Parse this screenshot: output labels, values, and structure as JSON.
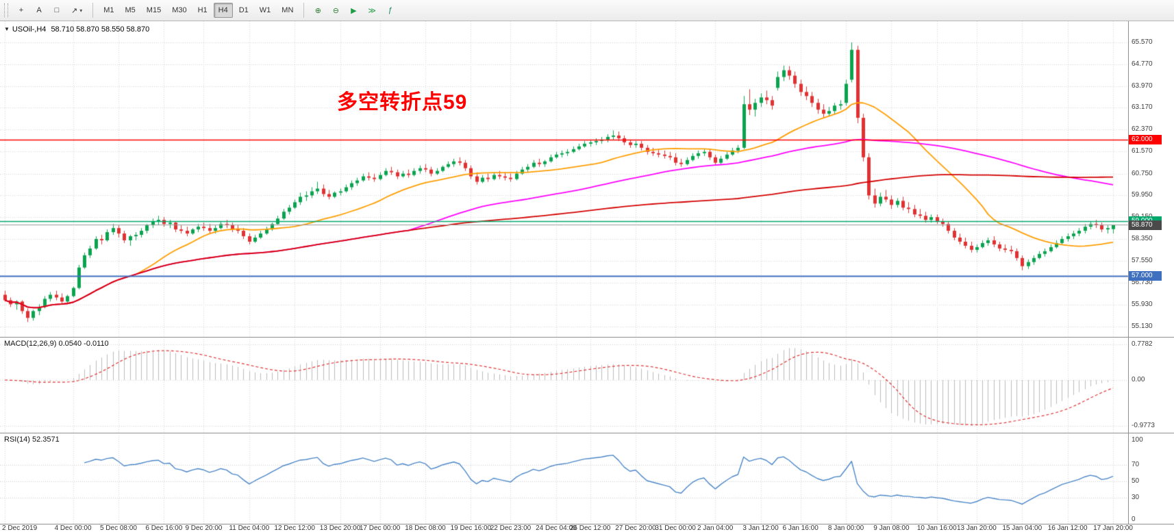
{
  "toolbar": {
    "left_tools": [
      {
        "name": "crosshair-tool",
        "glyph": "+"
      },
      {
        "name": "text-label-tool",
        "glyph": "A"
      },
      {
        "name": "rectangle-tool",
        "glyph": "□"
      },
      {
        "name": "shapes-arrows-tool",
        "glyph": "↗",
        "dropdown": "▾"
      }
    ],
    "timeframes": [
      "M1",
      "M5",
      "M15",
      "M30",
      "H1",
      "H4",
      "D1",
      "W1",
      "MN"
    ],
    "active_timeframe": "H4",
    "right_tools": [
      {
        "name": "zoom-in",
        "glyph": "⊕",
        "color": "#2e7d32"
      },
      {
        "name": "zoom-out",
        "glyph": "⊖",
        "color": "#2e7d32"
      },
      {
        "name": "auto-scroll",
        "glyph": "▶",
        "color": "#1f9d46"
      },
      {
        "name": "chart-shift",
        "glyph": "≫",
        "color": "#1f9d46"
      },
      {
        "name": "indicators",
        "glyph": "ƒ",
        "color": "#0b7f5a"
      }
    ]
  },
  "chart": {
    "symbol_title": "USOil-,H4",
    "ohlc": "58.710 58.870 58.550 58.870",
    "annotation": {
      "text": "多空转折点59",
      "color": "#ff0000"
    },
    "hlines": [
      {
        "value": 62.0,
        "label": "62.000",
        "color": "#ff0000",
        "width": 1.4
      },
      {
        "value": 59.0,
        "label": "59.000",
        "color": "#00a76d",
        "width": 1.6
      },
      {
        "value": 57.0,
        "label": "57.000",
        "color": "#3f6fbf",
        "width": 2.2
      }
    ],
    "current_price": {
      "value": 58.87,
      "label": "58.870",
      "bg": "#4a4a4a",
      "line_color": "#9a9a9a"
    }
  },
  "chart_data": {
    "type": "candlestick",
    "symbol": "USOil-",
    "timeframe": "H4",
    "title": "USOil-,H4",
    "ylim": [
      55.13,
      65.57
    ],
    "y_ticks": [
      65.57,
      64.77,
      63.97,
      63.17,
      62.37,
      61.57,
      60.75,
      59.95,
      59.15,
      58.35,
      57.55,
      56.73,
      55.93,
      55.13
    ],
    "x_ticks": [
      {
        "bar": 0,
        "label": "2 Dec 2019"
      },
      {
        "bar": 12,
        "label": "4 Dec 00:00"
      },
      {
        "bar": 20,
        "label": "5 Dec 08:00"
      },
      {
        "bar": 28,
        "label": "6 Dec 16:00"
      },
      {
        "bar": 35,
        "label": "9 Dec 20:00"
      },
      {
        "bar": 43,
        "label": "11 Dec 04:00"
      },
      {
        "bar": 51,
        "label": "12 Dec 12:00"
      },
      {
        "bar": 59,
        "label": "13 Dec 20:00"
      },
      {
        "bar": 66,
        "label": "17 Dec 00:00"
      },
      {
        "bar": 74,
        "label": "18 Dec 08:00"
      },
      {
        "bar": 82,
        "label": "19 Dec 16:00"
      },
      {
        "bar": 89,
        "label": "22 Dec 23:00"
      },
      {
        "bar": 97,
        "label": "24 Dec 04:00"
      },
      {
        "bar": 103,
        "label": "26 Dec 12:00"
      },
      {
        "bar": 111,
        "label": "27 Dec 20:00"
      },
      {
        "bar": 118,
        "label": "31 Dec 00:00"
      },
      {
        "bar": 125,
        "label": "2 Jan 04:00"
      },
      {
        "bar": 133,
        "label": "3 Jan 12:00"
      },
      {
        "bar": 140,
        "label": "6 Jan 16:00"
      },
      {
        "bar": 148,
        "label": "8 Jan 00:00"
      },
      {
        "bar": 156,
        "label": "9 Jan 08:00"
      },
      {
        "bar": 164,
        "label": "10 Jan 16:00"
      },
      {
        "bar": 171,
        "label": "13 Jan 20:00"
      },
      {
        "bar": 179,
        "label": "15 Jan 04:00"
      },
      {
        "bar": 187,
        "label": "16 Jan 12:00"
      },
      {
        "bar": 195,
        "label": "17 Jan 20:00"
      }
    ],
    "colors": {
      "up": "#0ca350",
      "down": "#e03232",
      "grid": "#d4d4d4",
      "background": "#ffffff",
      "axis_text": "#3c3c3c"
    },
    "moving_averages": [
      {
        "name": "fast-ma",
        "period": 24,
        "color": "#ff9d00"
      },
      {
        "name": "mid-ma",
        "period": 72,
        "color": "#ff00ff"
      },
      {
        "name": "slow-ma",
        "period": 150,
        "color": "#d40000"
      }
    ],
    "candles": [
      [
        56.3,
        56.45,
        56.05,
        56.1
      ],
      [
        56.1,
        56.2,
        55.85,
        55.95
      ],
      [
        55.95,
        56.1,
        55.75,
        56.05
      ],
      [
        56.05,
        56.1,
        55.6,
        55.7
      ],
      [
        55.7,
        55.8,
        55.3,
        55.45
      ],
      [
        55.45,
        55.75,
        55.35,
        55.7
      ],
      [
        55.7,
        55.95,
        55.55,
        55.85
      ],
      [
        55.85,
        56.25,
        55.8,
        56.15
      ],
      [
        56.15,
        56.4,
        56.05,
        56.3
      ],
      [
        56.3,
        56.45,
        56.1,
        56.2
      ],
      [
        56.2,
        56.35,
        55.95,
        56.05
      ],
      [
        56.05,
        56.3,
        55.95,
        56.25
      ],
      [
        56.25,
        56.6,
        56.2,
        56.55
      ],
      [
        56.55,
        57.4,
        56.5,
        57.3
      ],
      [
        57.3,
        57.85,
        57.25,
        57.75
      ],
      [
        57.75,
        58.1,
        57.65,
        58.0
      ],
      [
        58.0,
        58.45,
        57.95,
        58.35
      ],
      [
        58.35,
        58.5,
        58.15,
        58.3
      ],
      [
        58.3,
        58.7,
        58.25,
        58.6
      ],
      [
        58.6,
        58.9,
        58.5,
        58.75
      ],
      [
        58.75,
        58.85,
        58.4,
        58.55
      ],
      [
        58.55,
        58.65,
        58.2,
        58.3
      ],
      [
        58.3,
        58.5,
        58.1,
        58.45
      ],
      [
        58.45,
        58.6,
        58.3,
        58.5
      ],
      [
        58.5,
        58.75,
        58.4,
        58.65
      ],
      [
        58.65,
        58.9,
        58.55,
        58.85
      ],
      [
        58.85,
        59.1,
        58.75,
        59.0
      ],
      [
        59.0,
        59.2,
        58.85,
        59.05
      ],
      [
        59.05,
        59.15,
        58.8,
        58.9
      ],
      [
        58.9,
        59.05,
        58.75,
        58.95
      ],
      [
        58.95,
        59.0,
        58.6,
        58.7
      ],
      [
        58.7,
        58.85,
        58.55,
        58.65
      ],
      [
        58.65,
        58.8,
        58.45,
        58.55
      ],
      [
        58.55,
        58.75,
        58.5,
        58.7
      ],
      [
        58.7,
        58.9,
        58.6,
        58.8
      ],
      [
        58.8,
        58.95,
        58.65,
        58.75
      ],
      [
        58.75,
        58.9,
        58.55,
        58.65
      ],
      [
        58.65,
        58.85,
        58.55,
        58.75
      ],
      [
        58.75,
        59.0,
        58.7,
        58.9
      ],
      [
        58.9,
        59.05,
        58.75,
        58.85
      ],
      [
        58.85,
        58.95,
        58.6,
        58.7
      ],
      [
        58.7,
        58.85,
        58.55,
        58.65
      ],
      [
        58.65,
        58.75,
        58.35,
        58.45
      ],
      [
        58.45,
        58.55,
        58.15,
        58.25
      ],
      [
        58.25,
        58.5,
        58.2,
        58.4
      ],
      [
        58.4,
        58.65,
        58.35,
        58.55
      ],
      [
        58.55,
        58.8,
        58.5,
        58.7
      ],
      [
        58.7,
        58.95,
        58.65,
        58.9
      ],
      [
        58.9,
        59.2,
        58.85,
        59.1
      ],
      [
        59.1,
        59.45,
        59.05,
        59.35
      ],
      [
        59.35,
        59.6,
        59.25,
        59.5
      ],
      [
        59.5,
        59.8,
        59.45,
        59.7
      ],
      [
        59.7,
        60.05,
        59.6,
        59.9
      ],
      [
        59.9,
        60.1,
        59.75,
        59.95
      ],
      [
        59.95,
        60.25,
        59.85,
        60.1
      ],
      [
        60.1,
        60.45,
        60.0,
        60.2
      ],
      [
        60.2,
        60.35,
        59.9,
        60.0
      ],
      [
        60.0,
        60.15,
        59.8,
        59.9
      ],
      [
        59.9,
        60.1,
        59.85,
        60.05
      ],
      [
        60.05,
        60.2,
        59.95,
        60.1
      ],
      [
        60.1,
        60.35,
        60.05,
        60.25
      ],
      [
        60.25,
        60.5,
        60.15,
        60.4
      ],
      [
        60.4,
        60.6,
        60.3,
        60.5
      ],
      [
        60.5,
        60.75,
        60.45,
        60.65
      ],
      [
        60.65,
        60.8,
        60.5,
        60.6
      ],
      [
        60.6,
        60.75,
        60.45,
        60.55
      ],
      [
        60.55,
        60.8,
        60.5,
        60.7
      ],
      [
        60.7,
        60.95,
        60.65,
        60.85
      ],
      [
        60.85,
        61.0,
        60.7,
        60.8
      ],
      [
        60.8,
        60.9,
        60.55,
        60.65
      ],
      [
        60.65,
        60.85,
        60.6,
        60.75
      ],
      [
        60.75,
        60.9,
        60.6,
        60.7
      ],
      [
        60.7,
        60.95,
        60.65,
        60.85
      ],
      [
        60.85,
        61.05,
        60.75,
        60.95
      ],
      [
        60.95,
        61.1,
        60.8,
        60.9
      ],
      [
        60.9,
        61.0,
        60.65,
        60.75
      ],
      [
        60.75,
        60.95,
        60.7,
        60.85
      ],
      [
        60.85,
        61.05,
        60.8,
        61.0
      ],
      [
        61.0,
        61.2,
        60.95,
        61.1
      ],
      [
        61.1,
        61.3,
        61.0,
        61.2
      ],
      [
        61.2,
        61.35,
        61.05,
        61.15
      ],
      [
        61.15,
        61.25,
        60.85,
        60.95
      ],
      [
        60.95,
        61.05,
        60.55,
        60.65
      ],
      [
        60.65,
        60.8,
        60.35,
        60.45
      ],
      [
        60.45,
        60.7,
        60.4,
        60.6
      ],
      [
        60.6,
        60.75,
        60.45,
        60.55
      ],
      [
        60.55,
        60.8,
        60.5,
        60.7
      ],
      [
        60.7,
        60.85,
        60.55,
        60.65
      ],
      [
        60.65,
        60.8,
        60.5,
        60.6
      ],
      [
        60.6,
        60.75,
        60.45,
        60.55
      ],
      [
        60.55,
        60.85,
        60.5,
        60.75
      ],
      [
        60.75,
        61.0,
        60.7,
        60.9
      ],
      [
        60.9,
        61.1,
        60.8,
        61.0
      ],
      [
        61.0,
        61.25,
        60.95,
        61.15
      ],
      [
        61.15,
        61.3,
        61.0,
        61.1
      ],
      [
        61.1,
        61.25,
        61.0,
        61.2
      ],
      [
        61.2,
        61.45,
        61.15,
        61.35
      ],
      [
        61.35,
        61.55,
        61.3,
        61.45
      ],
      [
        61.45,
        61.6,
        61.35,
        61.5
      ],
      [
        61.5,
        61.65,
        61.4,
        61.55
      ],
      [
        61.55,
        61.75,
        61.5,
        61.65
      ],
      [
        61.65,
        61.85,
        61.6,
        61.75
      ],
      [
        61.75,
        61.95,
        61.7,
        61.85
      ],
      [
        61.85,
        62.0,
        61.75,
        61.9
      ],
      [
        61.9,
        62.05,
        61.8,
        61.95
      ],
      [
        61.95,
        62.1,
        61.85,
        62.0
      ],
      [
        62.0,
        62.2,
        61.9,
        62.1
      ],
      [
        62.1,
        62.34,
        62.0,
        62.15
      ],
      [
        62.15,
        62.3,
        61.95,
        62.05
      ],
      [
        62.05,
        62.15,
        61.8,
        61.9
      ],
      [
        61.9,
        62.0,
        61.7,
        61.8
      ],
      [
        61.8,
        61.95,
        61.7,
        61.85
      ],
      [
        61.85,
        61.95,
        61.6,
        61.7
      ],
      [
        61.7,
        61.8,
        61.45,
        61.55
      ],
      [
        61.55,
        61.7,
        61.4,
        61.5
      ],
      [
        61.5,
        61.65,
        61.35,
        61.45
      ],
      [
        61.45,
        61.6,
        61.3,
        61.4
      ],
      [
        61.4,
        61.55,
        61.25,
        61.35
      ],
      [
        61.35,
        61.5,
        61.05,
        61.15
      ],
      [
        61.15,
        61.3,
        61.0,
        61.1
      ],
      [
        61.1,
        61.35,
        61.05,
        61.25
      ],
      [
        61.25,
        61.5,
        61.2,
        61.4
      ],
      [
        61.4,
        61.6,
        61.3,
        61.5
      ],
      [
        61.5,
        61.65,
        61.4,
        61.55
      ],
      [
        61.55,
        61.65,
        61.25,
        61.35
      ],
      [
        61.35,
        61.45,
        61.05,
        61.15
      ],
      [
        61.15,
        61.4,
        61.1,
        61.3
      ],
      [
        61.3,
        61.55,
        61.25,
        61.45
      ],
      [
        61.45,
        61.7,
        61.4,
        61.6
      ],
      [
        61.6,
        61.8,
        61.5,
        61.7
      ],
      [
        61.7,
        63.6,
        61.65,
        63.3
      ],
      [
        63.3,
        63.85,
        62.9,
        63.1
      ],
      [
        63.1,
        63.5,
        62.85,
        63.35
      ],
      [
        63.35,
        63.7,
        63.2,
        63.55
      ],
      [
        63.55,
        63.8,
        63.3,
        63.45
      ],
      [
        63.45,
        63.6,
        63.1,
        63.25
      ],
      [
        63.9,
        64.5,
        63.8,
        64.3
      ],
      [
        64.3,
        64.72,
        64.15,
        64.55
      ],
      [
        64.55,
        64.7,
        64.2,
        64.35
      ],
      [
        64.35,
        64.5,
        63.9,
        64.05
      ],
      [
        64.05,
        64.2,
        63.6,
        63.75
      ],
      [
        63.75,
        63.95,
        63.45,
        63.6
      ],
      [
        63.6,
        63.75,
        63.2,
        63.35
      ],
      [
        63.35,
        63.5,
        62.95,
        63.1
      ],
      [
        63.1,
        63.3,
        62.8,
        62.95
      ],
      [
        62.95,
        63.2,
        62.85,
        63.05
      ],
      [
        63.05,
        63.35,
        62.95,
        63.25
      ],
      [
        63.25,
        63.45,
        63.1,
        63.3
      ],
      [
        63.35,
        64.2,
        63.25,
        64.05
      ],
      [
        64.2,
        65.57,
        64.1,
        65.3
      ],
      [
        65.3,
        65.45,
        62.6,
        62.8
      ],
      [
        62.8,
        62.95,
        61.2,
        61.35
      ],
      [
        61.35,
        61.5,
        59.8,
        59.95
      ],
      [
        59.95,
        60.2,
        59.5,
        59.65
      ],
      [
        59.65,
        60.05,
        59.55,
        59.9
      ],
      [
        59.9,
        60.15,
        59.7,
        59.8
      ],
      [
        59.8,
        59.95,
        59.45,
        59.6
      ],
      [
        59.6,
        59.85,
        59.5,
        59.75
      ],
      [
        59.75,
        59.9,
        59.4,
        59.5
      ],
      [
        59.5,
        59.7,
        59.3,
        59.45
      ],
      [
        59.45,
        59.6,
        59.15,
        59.25
      ],
      [
        59.25,
        59.45,
        59.1,
        59.2
      ],
      [
        59.2,
        59.35,
        58.95,
        59.05
      ],
      [
        59.05,
        59.25,
        58.95,
        59.15
      ],
      [
        59.15,
        59.25,
        58.9,
        59.0
      ],
      [
        59.0,
        59.1,
        58.8,
        58.9
      ],
      [
        58.9,
        59.0,
        58.55,
        58.65
      ],
      [
        58.65,
        58.75,
        58.3,
        58.4
      ],
      [
        58.4,
        58.55,
        58.15,
        58.25
      ],
      [
        58.25,
        58.4,
        58.0,
        58.1
      ],
      [
        58.1,
        58.25,
        57.85,
        57.95
      ],
      [
        57.95,
        58.15,
        57.85,
        58.05
      ],
      [
        58.05,
        58.3,
        58.0,
        58.2
      ],
      [
        58.2,
        58.4,
        58.1,
        58.3
      ],
      [
        58.3,
        58.45,
        58.05,
        58.15
      ],
      [
        58.15,
        58.25,
        57.9,
        58.0
      ],
      [
        58.0,
        58.15,
        57.85,
        57.95
      ],
      [
        57.95,
        58.1,
        57.8,
        57.9
      ],
      [
        57.9,
        58.0,
        57.55,
        57.65
      ],
      [
        57.65,
        57.75,
        57.2,
        57.35
      ],
      [
        57.35,
        57.6,
        57.25,
        57.5
      ],
      [
        57.5,
        57.75,
        57.4,
        57.65
      ],
      [
        57.65,
        57.9,
        57.6,
        57.8
      ],
      [
        57.8,
        58.0,
        57.7,
        57.9
      ],
      [
        57.9,
        58.15,
        57.85,
        58.05
      ],
      [
        58.05,
        58.3,
        58.0,
        58.2
      ],
      [
        58.2,
        58.45,
        58.15,
        58.35
      ],
      [
        58.35,
        58.55,
        58.25,
        58.45
      ],
      [
        58.45,
        58.65,
        58.35,
        58.55
      ],
      [
        58.55,
        58.75,
        58.45,
        58.65
      ],
      [
        58.65,
        58.9,
        58.55,
        58.8
      ],
      [
        58.8,
        59.0,
        58.7,
        58.9
      ],
      [
        58.9,
        59.05,
        58.75,
        58.85
      ],
      [
        58.85,
        58.95,
        58.6,
        58.7
      ],
      [
        58.7,
        58.85,
        58.55,
        58.75
      ],
      [
        58.71,
        58.87,
        58.55,
        58.87
      ]
    ],
    "indicators": [
      {
        "type": "MACD",
        "label": "MACD(12,26,9)",
        "values_text": "0.0540 -0.0110",
        "axis": [
          0.7782,
          0.0,
          -0.9773
        ],
        "axis_labels": [
          "0.7782",
          "0.00",
          "-0.9773"
        ],
        "histogram_color": "#bbbbbb",
        "signal_color": "#e03232"
      },
      {
        "type": "RSI",
        "label": "RSI(14)",
        "values_text": "52.3571",
        "axis": [
          100,
          70,
          50,
          30,
          0
        ],
        "levels": [
          70,
          50,
          30
        ],
        "line_color": "#4a86c8"
      }
    ]
  }
}
